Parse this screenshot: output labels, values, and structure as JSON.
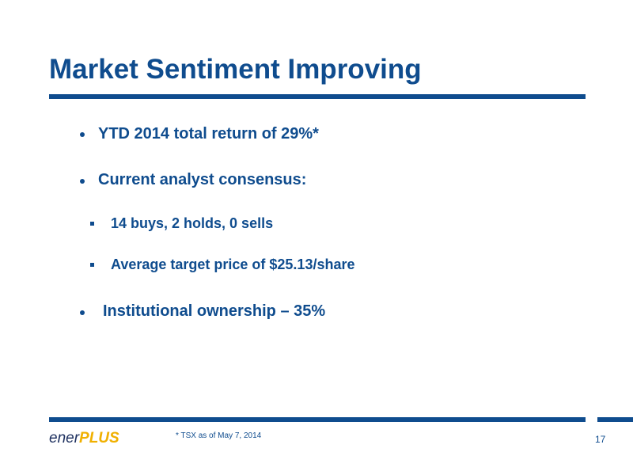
{
  "header": {
    "title": "Market Sentiment Improving"
  },
  "bullets": [
    {
      "text": "YTD 2014 total return of 29%*"
    },
    {
      "text": "Current analyst consensus:",
      "sub": [
        "14 buys, 2 holds, 0 sells",
        "Average target price of $25.13/share"
      ]
    },
    {
      "text": "Institutional ownership – 35%"
    }
  ],
  "footer": {
    "logo": {
      "part1": "ener",
      "part2": "PLUS"
    },
    "footnote": "* TSX as of May 7, 2014",
    "page_number": "17"
  }
}
